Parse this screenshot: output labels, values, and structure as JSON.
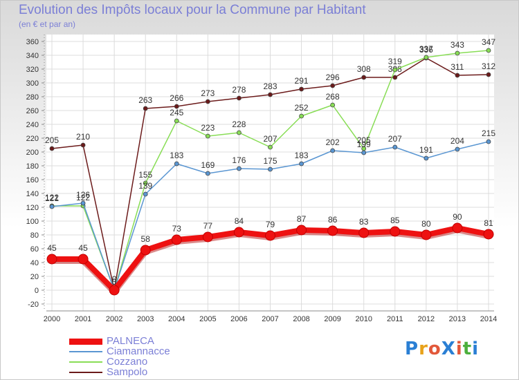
{
  "header": {
    "title": "Evolution des Impôts locaux pour la Commune par Habitant",
    "subtitle": "(en € et par an)"
  },
  "logo": {
    "text": "ProXiti",
    "letter_colors": [
      "#2a7fd4",
      "#e8a21a",
      "#e2583a",
      "#2a7fd4",
      "#e2583a",
      "#4caf3c",
      "#2a7fd4"
    ]
  },
  "chart_data": {
    "type": "line",
    "x": [
      2000,
      2001,
      2002,
      2003,
      2004,
      2005,
      2006,
      2007,
      2008,
      2009,
      2010,
      2011,
      2012,
      2013,
      2014
    ],
    "xlim": [
      2000,
      2014
    ],
    "ylim": [
      -20,
      360
    ],
    "y_ticks": [
      -20,
      0,
      20,
      40,
      60,
      80,
      100,
      120,
      140,
      160,
      180,
      200,
      220,
      240,
      260,
      280,
      300,
      320,
      340,
      360
    ],
    "grid": true,
    "legend_position": "bottom-left",
    "series": [
      {
        "name": "Sampolo",
        "color": "#6b1a1a",
        "values": [
          205,
          210,
          0,
          263,
          266,
          273,
          278,
          283,
          291,
          296,
          308,
          308,
          336,
          311,
          312
        ]
      },
      {
        "name": "Cozzano",
        "color": "#88dd55",
        "values": [
          122,
          122,
          0,
          155,
          245,
          223,
          228,
          207,
          252,
          268,
          205,
          319,
          337,
          343,
          347
        ]
      },
      {
        "name": "Ciamannacce",
        "color": "#5a96d2",
        "values": [
          121,
          126,
          0,
          139,
          183,
          169,
          176,
          175,
          183,
          202,
          199,
          207,
          191,
          204,
          215
        ]
      },
      {
        "name": "PALNECA",
        "color": "#ee1111",
        "values": [
          45,
          45,
          0,
          58,
          73,
          77,
          84,
          79,
          87,
          86,
          83,
          85,
          80,
          90,
          81
        ]
      }
    ]
  }
}
